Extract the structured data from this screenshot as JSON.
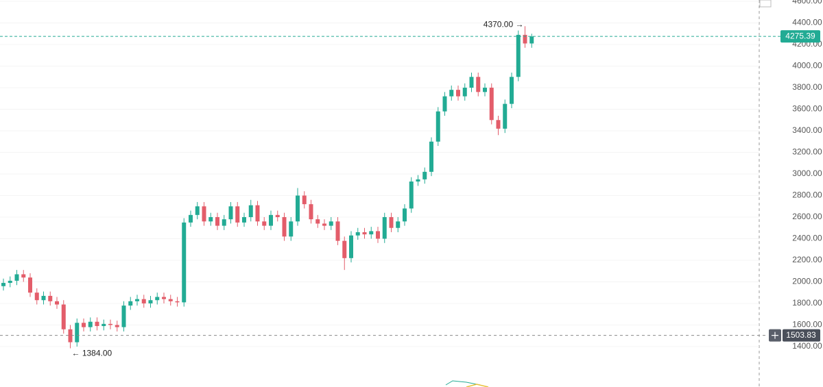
{
  "chart_data": {
    "type": "candlestick",
    "up_color": "#22ab94",
    "down_color": "#e35d6a",
    "grid": true,
    "ylim": [
      1025,
      4613
    ],
    "yticks": [
      {
        "value": 1400,
        "label": "1400.00"
      },
      {
        "value": 1600,
        "label": "1600.00"
      },
      {
        "value": 1800,
        "label": "1800.00"
      },
      {
        "value": 2000,
        "label": "2000.00"
      },
      {
        "value": 2200,
        "label": "2200.00"
      },
      {
        "value": 2400,
        "label": "2400.00"
      },
      {
        "value": 2600,
        "label": "2600.00"
      },
      {
        "value": 2800,
        "label": "2800.00"
      },
      {
        "value": 3000,
        "label": "3000.00"
      },
      {
        "value": 3200,
        "label": "3200.00"
      },
      {
        "value": 3400,
        "label": "3400.00"
      },
      {
        "value": 3600,
        "label": "3600.00"
      },
      {
        "value": 3800,
        "label": "3800.00"
      },
      {
        "value": 4000,
        "label": "4000.00"
      },
      {
        "value": 4200,
        "label": "4200.00"
      },
      {
        "value": 4400,
        "label": "4400.00"
      },
      {
        "value": 4600,
        "label": "4600.00"
      }
    ],
    "open": [
      1960,
      1990,
      2010,
      2070,
      2040,
      1900,
      1830,
      1870,
      1820,
      1790,
      1560,
      1440,
      1620,
      1580,
      1630,
      1590,
      1610,
      1600,
      1580,
      1780,
      1820,
      1840,
      1800,
      1830,
      1860,
      1840,
      1820,
      1810,
      2550,
      2620,
      2700,
      2560,
      2600,
      2520,
      2580,
      2700,
      2550,
      2600,
      2710,
      2560,
      2520,
      2620,
      2600,
      2420,
      2560,
      2800,
      2720,
      2580,
      2540,
      2520,
      2560,
      2380,
      2220,
      2430,
      2460,
      2440,
      2470,
      2400,
      2600,
      2500,
      2560,
      2680,
      2930,
      2950,
      3020,
      3300,
      3580,
      3720,
      3780,
      3720,
      3800,
      3900,
      3760,
      3800,
      3500,
      3420,
      3650,
      3900,
      4290,
      4210
    ],
    "high": [
      2030,
      2050,
      2110,
      2110,
      2080,
      1940,
      1910,
      1910,
      1860,
      1830,
      1600,
      1660,
      1660,
      1670,
      1670,
      1650,
      1650,
      1640,
      1820,
      1860,
      1880,
      1880,
      1870,
      1900,
      1900,
      1880,
      1860,
      2590,
      2660,
      2740,
      2740,
      2640,
      2640,
      2620,
      2740,
      2740,
      2640,
      2760,
      2750,
      2600,
      2660,
      2660,
      2640,
      2600,
      2870,
      2840,
      2760,
      2620,
      2580,
      2600,
      2600,
      2420,
      2470,
      2500,
      2500,
      2510,
      2510,
      2640,
      2640,
      2600,
      2720,
      2970,
      2990,
      3060,
      3340,
      3620,
      3760,
      3820,
      3820,
      3840,
      3940,
      3940,
      3840,
      3840,
      3540,
      3690,
      3940,
      4330,
      4370,
      4300
    ],
    "low": [
      1920,
      1950,
      1970,
      2000,
      1860,
      1790,
      1790,
      1780,
      1750,
      1520,
      1384,
      1400,
      1540,
      1540,
      1550,
      1550,
      1560,
      1540,
      1540,
      1740,
      1780,
      1760,
      1760,
      1790,
      1800,
      1780,
      1770,
      1770,
      2510,
      2580,
      2520,
      2520,
      2480,
      2480,
      2540,
      2510,
      2510,
      2560,
      2520,
      2480,
      2480,
      2560,
      2380,
      2380,
      2520,
      2680,
      2540,
      2500,
      2480,
      2480,
      2340,
      2110,
      2180,
      2390,
      2400,
      2400,
      2360,
      2360,
      2460,
      2460,
      2520,
      2640,
      2890,
      2910,
      2980,
      3260,
      3540,
      3680,
      3680,
      3680,
      3760,
      3720,
      3720,
      3460,
      3360,
      3380,
      3610,
      3860,
      4170,
      4170
    ],
    "close": [
      1990,
      2010,
      2070,
      2040,
      1900,
      1830,
      1870,
      1820,
      1790,
      1560,
      1440,
      1620,
      1580,
      1630,
      1590,
      1610,
      1600,
      1580,
      1780,
      1820,
      1840,
      1800,
      1830,
      1860,
      1840,
      1820,
      1810,
      2550,
      2620,
      2700,
      2560,
      2600,
      2520,
      2580,
      2700,
      2550,
      2600,
      2710,
      2560,
      2520,
      2620,
      2600,
      2420,
      2560,
      2800,
      2720,
      2580,
      2540,
      2520,
      2560,
      2380,
      2220,
      2430,
      2460,
      2440,
      2470,
      2400,
      2600,
      2500,
      2560,
      2680,
      2930,
      2950,
      3020,
      3300,
      3580,
      3720,
      3780,
      3720,
      3800,
      3900,
      3760,
      3800,
      3500,
      3420,
      3650,
      3900,
      4290,
      4210,
      4275.39
    ],
    "annotations": [
      {
        "value": 4370,
        "label": "4370.00 →"
      },
      {
        "value": 1384,
        "label": "← 1384.00"
      }
    ],
    "last_price": 4275.39,
    "crosshair_price": 1503.83
  }
}
